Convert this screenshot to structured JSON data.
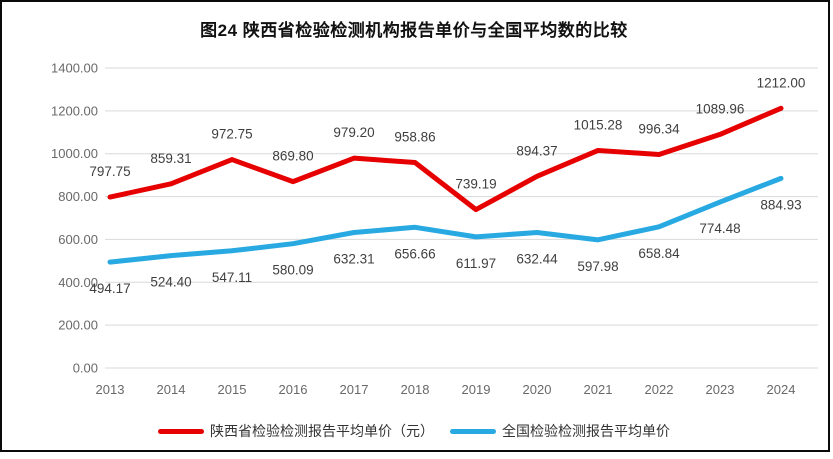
{
  "chart_data": {
    "type": "line",
    "title": "图24 陕西省检验检测机构报告单价与全国平均数的比较",
    "categories": [
      "2013",
      "2014",
      "2015",
      "2016",
      "2017",
      "2018",
      "2019",
      "2020",
      "2021",
      "2022",
      "2023",
      "2024"
    ],
    "series": [
      {
        "name": "陕西省检验检测报告平均单价（元）",
        "color": "#e60000",
        "label_position": "above",
        "values": [
          797.75,
          859.31,
          972.75,
          869.8,
          979.2,
          958.86,
          739.19,
          894.37,
          1015.28,
          996.34,
          1089.96,
          1212.0
        ]
      },
      {
        "name": "全国检验检测报告平均单价",
        "color": "#29a9e1",
        "label_position": "below",
        "values": [
          494.17,
          524.4,
          547.11,
          580.09,
          632.31,
          656.66,
          611.97,
          632.44,
          597.98,
          658.84,
          774.48,
          884.93
        ]
      }
    ],
    "ylim": [
      0,
      1400
    ],
    "y_tick_step": 200,
    "y_tick_labels": [
      "0.00",
      "200.00",
      "400.00",
      "600.00",
      "800.00",
      "1000.00",
      "1200.00",
      "1400.00"
    ],
    "grid": "horizontal",
    "legend_position": "bottom",
    "gridline_color": "#d9d9d9",
    "axis_label_color": "#696969",
    "data_label_color": "#3f3f3f",
    "frame_border_color": "#0a0a0a"
  }
}
